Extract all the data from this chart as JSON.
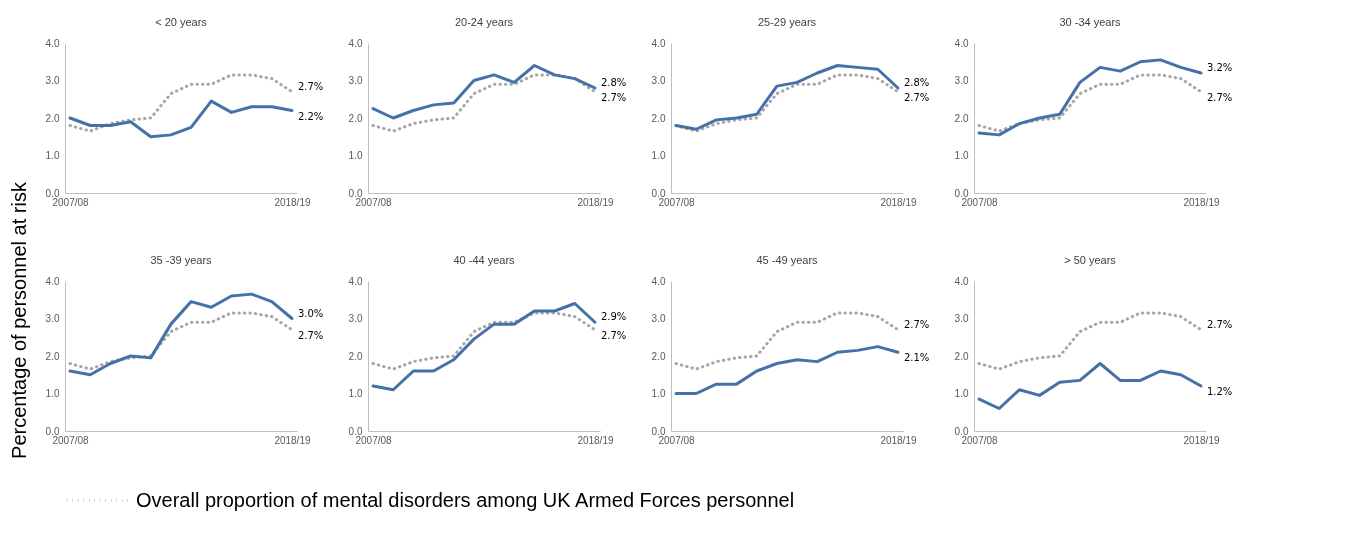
{
  "chart_data": [
    {
      "type": "line",
      "title": "< 20 years",
      "ylabel": "Percentage of personnel at risk",
      "categories": [
        "2007/08",
        null,
        null,
        null,
        null,
        null,
        null,
        null,
        null,
        null,
        null,
        "2018/19"
      ],
      "ylim": [
        0,
        4
      ],
      "yticks": [
        {
          "value": 0,
          "label": "0.0"
        },
        {
          "value": 1,
          "label": "1.0"
        },
        {
          "value": 2,
          "label": "2.0"
        },
        {
          "value": 3,
          "label": "3.0"
        },
        {
          "value": 4,
          "label": "4.0"
        }
      ],
      "legend": "bottom",
      "series": [
        {
          "name": "Overall proportion of mental disorders among UK Armed Forces personnel",
          "color": "#a6a6a6",
          "line_style": "dotted",
          "values": [
            1.8,
            1.65,
            1.85,
            1.95,
            2.0,
            2.65,
            2.9,
            2.9,
            3.15,
            3.15,
            3.05,
            2.7
          ],
          "value_labels": [
            null,
            null,
            null,
            null,
            null,
            null,
            null,
            null,
            null,
            null,
            null,
            "2.7%"
          ]
        },
        {
          "color": "#4472a8",
          "values": [
            2.0,
            1.8,
            1.8,
            1.9,
            1.5,
            1.55,
            1.75,
            2.45,
            2.15,
            2.3,
            2.3,
            2.2
          ],
          "value_labels": [
            null,
            null,
            null,
            null,
            null,
            null,
            null,
            null,
            null,
            null,
            null,
            "2.2%"
          ]
        }
      ]
    },
    {
      "type": "line",
      "title": "20-24 years",
      "categories": [
        "2007/08",
        null,
        null,
        null,
        null,
        null,
        null,
        null,
        null,
        null,
        null,
        "2018/19"
      ],
      "ylim": [
        0,
        4
      ],
      "yticks": [
        {
          "value": 0,
          "label": "0.0"
        },
        {
          "value": 1,
          "label": "1.0"
        },
        {
          "value": 2,
          "label": "2.0"
        },
        {
          "value": 3,
          "label": "3.0"
        },
        {
          "value": 4,
          "label": "4.0"
        }
      ],
      "legend": "bottom",
      "series": [
        {
          "name": "Overall proportion of mental disorders among UK Armed Forces personnel",
          "color": "#a6a6a6",
          "line_style": "dotted",
          "values": [
            1.8,
            1.65,
            1.85,
            1.95,
            2.0,
            2.65,
            2.9,
            2.9,
            3.15,
            3.15,
            3.05,
            2.7
          ],
          "value_labels": [
            null,
            null,
            null,
            null,
            null,
            null,
            null,
            null,
            null,
            null,
            null,
            "2.7%"
          ]
        },
        {
          "color": "#4472a8",
          "values": [
            2.25,
            2.0,
            2.2,
            2.35,
            2.4,
            3.0,
            3.15,
            2.95,
            3.4,
            3.15,
            3.05,
            2.8
          ],
          "value_labels": [
            null,
            null,
            null,
            null,
            null,
            null,
            null,
            null,
            null,
            null,
            null,
            "2.8%"
          ]
        }
      ]
    },
    {
      "type": "line",
      "title": "25-29 years",
      "categories": [
        "2007/08",
        null,
        null,
        null,
        null,
        null,
        null,
        null,
        null,
        null,
        null,
        "2018/19"
      ],
      "ylim": [
        0,
        4
      ],
      "yticks": [
        {
          "value": 0,
          "label": "0.0"
        },
        {
          "value": 1,
          "label": "1.0"
        },
        {
          "value": 2,
          "label": "2.0"
        },
        {
          "value": 3,
          "label": "3.0"
        },
        {
          "value": 4,
          "label": "4.0"
        }
      ],
      "legend": "bottom",
      "series": [
        {
          "name": "Overall proportion of mental disorders among UK Armed Forces personnel",
          "color": "#a6a6a6",
          "line_style": "dotted",
          "values": [
            1.8,
            1.65,
            1.85,
            1.95,
            2.0,
            2.65,
            2.9,
            2.9,
            3.15,
            3.15,
            3.05,
            2.7
          ],
          "value_labels": [
            null,
            null,
            null,
            null,
            null,
            null,
            null,
            null,
            null,
            null,
            null,
            "2.7%"
          ]
        },
        {
          "color": "#4472a8",
          "values": [
            1.8,
            1.7,
            1.95,
            2.0,
            2.1,
            2.85,
            2.95,
            3.2,
            3.4,
            3.35,
            3.3,
            2.8
          ],
          "value_labels": [
            null,
            null,
            null,
            null,
            null,
            null,
            null,
            null,
            null,
            null,
            null,
            "2.8%"
          ]
        }
      ]
    },
    {
      "type": "line",
      "title": "30 -34 years",
      "categories": [
        "2007/08",
        null,
        null,
        null,
        null,
        null,
        null,
        null,
        null,
        null,
        null,
        "2018/19"
      ],
      "ylim": [
        0,
        4
      ],
      "yticks": [
        {
          "value": 0,
          "label": "0.0"
        },
        {
          "value": 1,
          "label": "1.0"
        },
        {
          "value": 2,
          "label": "2.0"
        },
        {
          "value": 3,
          "label": "3.0"
        },
        {
          "value": 4,
          "label": "4.0"
        }
      ],
      "legend": "bottom",
      "series": [
        {
          "name": "Overall proportion of mental disorders among UK Armed Forces personnel",
          "color": "#a6a6a6",
          "line_style": "dotted",
          "values": [
            1.8,
            1.65,
            1.85,
            1.95,
            2.0,
            2.65,
            2.9,
            2.9,
            3.15,
            3.15,
            3.05,
            2.7
          ],
          "value_labels": [
            null,
            null,
            null,
            null,
            null,
            null,
            null,
            null,
            null,
            null,
            null,
            "2.7%"
          ]
        },
        {
          "color": "#4472a8",
          "values": [
            1.6,
            1.55,
            1.85,
            2.0,
            2.1,
            2.95,
            3.35,
            3.25,
            3.5,
            3.55,
            3.35,
            3.2
          ],
          "value_labels": [
            null,
            null,
            null,
            null,
            null,
            null,
            null,
            null,
            null,
            null,
            null,
            "3.2%"
          ]
        }
      ]
    },
    {
      "type": "line",
      "title": "35 -39 years",
      "categories": [
        "2007/08",
        null,
        null,
        null,
        null,
        null,
        null,
        null,
        null,
        null,
        null,
        "2018/19"
      ],
      "ylim": [
        0,
        4
      ],
      "yticks": [
        {
          "value": 0,
          "label": "0.0"
        },
        {
          "value": 1,
          "label": "1.0"
        },
        {
          "value": 2,
          "label": "2.0"
        },
        {
          "value": 3,
          "label": "3.0"
        },
        {
          "value": 4,
          "label": "4.0"
        }
      ],
      "legend": "bottom",
      "series": [
        {
          "name": "Overall proportion of mental disorders among UK Armed Forces personnel",
          "color": "#a6a6a6",
          "line_style": "dotted",
          "values": [
            1.8,
            1.65,
            1.85,
            1.95,
            2.0,
            2.65,
            2.9,
            2.9,
            3.15,
            3.15,
            3.05,
            2.7
          ],
          "value_labels": [
            null,
            null,
            null,
            null,
            null,
            null,
            null,
            null,
            null,
            null,
            null,
            "2.7%"
          ]
        },
        {
          "color": "#4472a8",
          "values": [
            1.6,
            1.5,
            1.8,
            2.0,
            1.95,
            2.85,
            3.45,
            3.3,
            3.6,
            3.65,
            3.45,
            3.0
          ],
          "value_labels": [
            null,
            null,
            null,
            null,
            null,
            null,
            null,
            null,
            null,
            null,
            null,
            "3.0%"
          ]
        }
      ]
    },
    {
      "type": "line",
      "title": "40 -44 years",
      "categories": [
        "2007/08",
        null,
        null,
        null,
        null,
        null,
        null,
        null,
        null,
        null,
        null,
        "2018/19"
      ],
      "ylim": [
        0,
        4
      ],
      "yticks": [
        {
          "value": 0,
          "label": "0.0"
        },
        {
          "value": 1,
          "label": "1.0"
        },
        {
          "value": 2,
          "label": "2.0"
        },
        {
          "value": 3,
          "label": "3.0"
        },
        {
          "value": 4,
          "label": "4.0"
        }
      ],
      "legend": "bottom",
      "series": [
        {
          "name": "Overall proportion of mental disorders among UK Armed Forces personnel",
          "color": "#a6a6a6",
          "line_style": "dotted",
          "values": [
            1.8,
            1.65,
            1.85,
            1.95,
            2.0,
            2.65,
            2.9,
            2.9,
            3.15,
            3.15,
            3.05,
            2.7
          ],
          "value_labels": [
            null,
            null,
            null,
            null,
            null,
            null,
            null,
            null,
            null,
            null,
            null,
            "2.7%"
          ]
        },
        {
          "color": "#4472a8",
          "values": [
            1.2,
            1.1,
            1.6,
            1.6,
            1.9,
            2.45,
            2.85,
            2.85,
            3.2,
            3.2,
            3.4,
            2.9
          ],
          "value_labels": [
            null,
            null,
            null,
            null,
            null,
            null,
            null,
            null,
            null,
            null,
            null,
            "2.9%"
          ]
        }
      ]
    },
    {
      "type": "line",
      "title": "45 -49 years",
      "categories": [
        "2007/08",
        null,
        null,
        null,
        null,
        null,
        null,
        null,
        null,
        null,
        null,
        "2018/19"
      ],
      "ylim": [
        0,
        4
      ],
      "yticks": [
        {
          "value": 0,
          "label": "0.0"
        },
        {
          "value": 1,
          "label": "1.0"
        },
        {
          "value": 2,
          "label": "2.0"
        },
        {
          "value": 3,
          "label": "3.0"
        },
        {
          "value": 4,
          "label": "4.0"
        }
      ],
      "legend": "bottom",
      "series": [
        {
          "name": "Overall proportion of mental disorders among UK Armed Forces personnel",
          "color": "#a6a6a6",
          "line_style": "dotted",
          "values": [
            1.8,
            1.65,
            1.85,
            1.95,
            2.0,
            2.65,
            2.9,
            2.9,
            3.15,
            3.15,
            3.05,
            2.7
          ],
          "value_labels": [
            null,
            null,
            null,
            null,
            null,
            null,
            null,
            null,
            null,
            null,
            null,
            "2.7%"
          ]
        },
        {
          "color": "#4472a8",
          "values": [
            1.0,
            1.0,
            1.25,
            1.25,
            1.6,
            1.8,
            1.9,
            1.85,
            2.1,
            2.15,
            2.25,
            2.1
          ],
          "value_labels": [
            null,
            null,
            null,
            null,
            null,
            null,
            null,
            null,
            null,
            null,
            null,
            "2.1%"
          ]
        }
      ]
    },
    {
      "type": "line",
      "title": "> 50 years",
      "categories": [
        "2007/08",
        null,
        null,
        null,
        null,
        null,
        null,
        null,
        null,
        null,
        null,
        "2018/19"
      ],
      "ylim": [
        0,
        4
      ],
      "yticks": [
        {
          "value": 0,
          "label": "0.0"
        },
        {
          "value": 1,
          "label": "1.0"
        },
        {
          "value": 2,
          "label": "2.0"
        },
        {
          "value": 3,
          "label": "3.0"
        },
        {
          "value": 4,
          "label": "4.0"
        }
      ],
      "legend": "bottom",
      "series": [
        {
          "name": "Overall proportion of mental disorders among UK Armed Forces personnel",
          "color": "#a6a6a6",
          "line_style": "dotted",
          "values": [
            1.8,
            1.65,
            1.85,
            1.95,
            2.0,
            2.65,
            2.9,
            2.9,
            3.15,
            3.15,
            3.05,
            2.7
          ],
          "value_labels": [
            null,
            null,
            null,
            null,
            null,
            null,
            null,
            null,
            null,
            null,
            null,
            "2.7%"
          ]
        },
        {
          "color": "#4472a8",
          "values": [
            0.85,
            0.6,
            1.1,
            0.95,
            1.3,
            1.35,
            1.8,
            1.35,
            1.35,
            1.6,
            1.5,
            1.2
          ],
          "value_labels": [
            null,
            null,
            null,
            null,
            null,
            null,
            null,
            null,
            null,
            null,
            null,
            "1.2%"
          ]
        }
      ]
    }
  ]
}
